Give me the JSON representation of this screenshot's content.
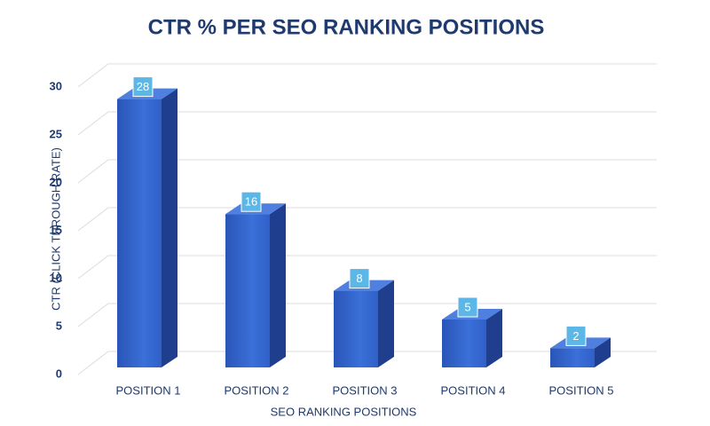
{
  "chart_data": {
    "type": "bar",
    "title": "CTR % PER SEO RANKING POSITIONS",
    "x_label": "SEO RANKING POSITIONS",
    "y_label": "CTR (CLICK THROUGH RATE)",
    "categories": [
      "POSITION 1",
      "POSITION 2",
      "POSITION 3",
      "POSITION 4",
      "POSITION 5"
    ],
    "values": [
      28,
      16,
      8,
      5,
      2
    ],
    "color": "#2f60c8",
    "ylim": [
      0,
      30
    ],
    "yticks": [
      0,
      5,
      10,
      15,
      20,
      25,
      30
    ],
    "grid": true
  }
}
